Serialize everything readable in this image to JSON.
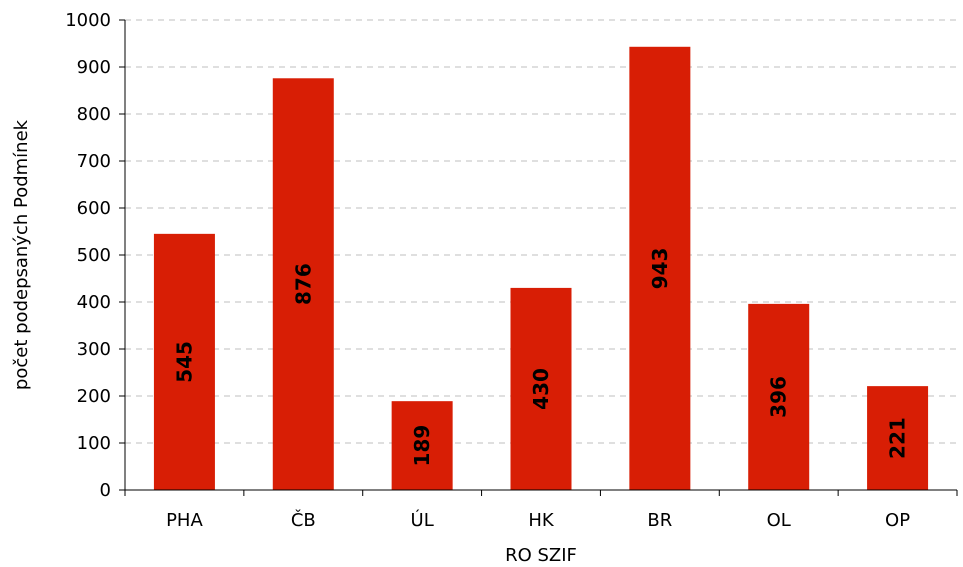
{
  "chart_data": {
    "type": "bar",
    "categories": [
      "PHA",
      "ČB",
      "ÚL",
      "HK",
      "BR",
      "OL",
      "OP"
    ],
    "values": [
      545,
      876,
      189,
      430,
      943,
      396,
      221
    ],
    "title": "",
    "xlabel": "RO SZIF",
    "ylabel": "počet podepsaných Podmínek",
    "ylim": [
      0,
      1000
    ],
    "yticks": [
      0,
      100,
      200,
      300,
      400,
      500,
      600,
      700,
      800,
      900,
      1000
    ],
    "grid": true,
    "bar_color": "#d81e05",
    "data_labels": true
  }
}
